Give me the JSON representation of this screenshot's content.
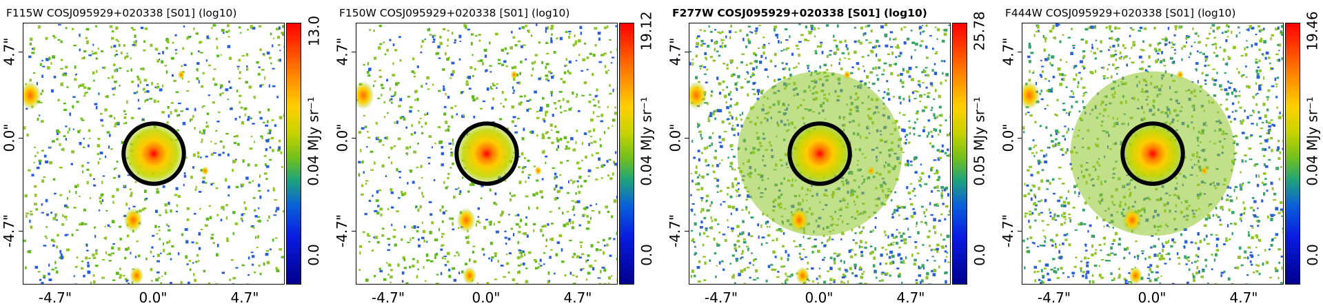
{
  "panels": [
    {
      "title": "F115W COSJ095929+020338 [S01] (log10)",
      "bold": false,
      "cb_max": "13.0",
      "cb_mid": "0.04 MJy sr⁻¹",
      "cb_min": "0.0",
      "density": 0.35,
      "fg": "#5fb81e"
    },
    {
      "title": "F150W COSJ095929+020338 [S01] (log10)",
      "bold": false,
      "cb_max": "19.12",
      "cb_mid": "0.04 MJy sr⁻¹",
      "cb_min": "0.0",
      "density": 0.38,
      "fg": "#5fb81e"
    },
    {
      "title": "F277W COSJ095929+020338 [S01] (log10)",
      "bold": true,
      "cb_max": "25.78",
      "cb_mid": "0.05 MJy sr⁻¹",
      "cb_min": "0.0",
      "density": 0.6,
      "fg": "#3aa36a"
    },
    {
      "title": "F444W COSJ095929+020338 [S01] (log10)",
      "bold": false,
      "cb_max": "19.46",
      "cb_mid": "0.04 MJy sr⁻¹",
      "cb_min": "0.0",
      "density": 0.55,
      "fg": "#3aa36a"
    }
  ],
  "ticks": {
    "neg": "-4.7\"",
    "zero": "0.0\"",
    "pos": "4.7\""
  }
}
